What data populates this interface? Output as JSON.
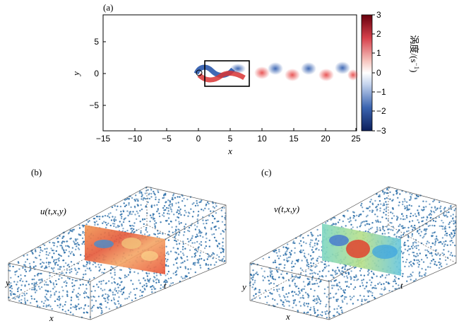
{
  "panels": {
    "a": {
      "label": "(a)",
      "xlabel": "x",
      "ylabel": "y",
      "xticks": [
        "−15",
        "−10",
        "−5",
        "0",
        "5",
        "10",
        "15",
        "20",
        "25"
      ],
      "yticks": [
        "5",
        "0",
        "−5"
      ],
      "colorbar": {
        "ticks": [
          "3",
          "2",
          "1",
          "0",
          "−1",
          "−2",
          "−3"
        ],
        "label_cn": "涡度/(s",
        "label_exp": "−1",
        "label_close": ")",
        "colors": {
          "high": "#7a0a14",
          "mid": "#ffffff",
          "low": "#0d2a6e"
        }
      }
    },
    "b": {
      "label": "(b)",
      "field": "u(t,x,y)",
      "axis_x": "x",
      "axis_y": "y",
      "axis_t": "t"
    },
    "c": {
      "label": "(c)",
      "field": "v(t,x,y)",
      "axis_x": "x",
      "axis_y": "y",
      "axis_t": "t"
    }
  },
  "colors": {
    "points": "#2b6ea8",
    "box": "#333333"
  }
}
